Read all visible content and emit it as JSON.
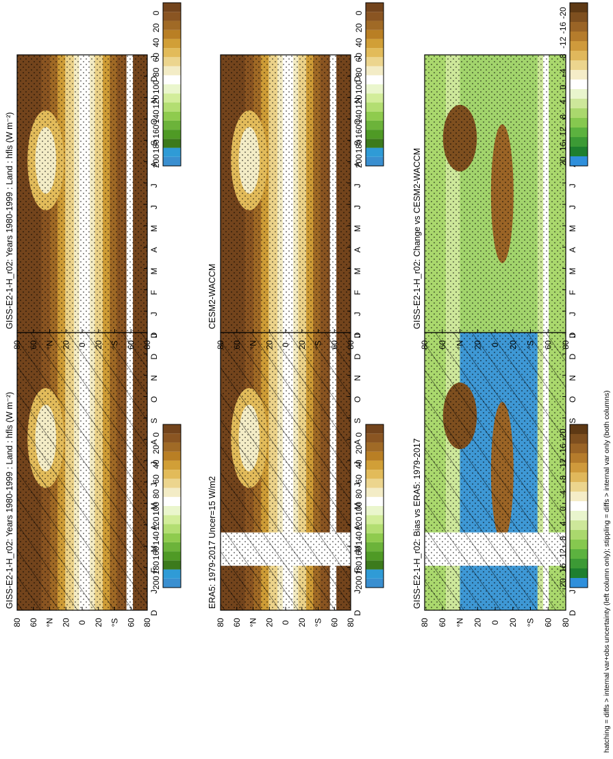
{
  "footnote": "hatching = diffs > internal var+obs uncertainty (left column only); stippling = diffs > internal var only (both columns)",
  "months": [
    "D",
    "J",
    "F",
    "M",
    "A",
    "M",
    "J",
    "J",
    "A",
    "S",
    "O",
    "N",
    "D",
    "J"
  ],
  "lat_ticks": [
    "80",
    "60",
    "°N",
    "20",
    "0",
    "20",
    "°S",
    "60",
    "80"
  ],
  "abs_colorbar_labels": [
    "200",
    "180",
    "160",
    "140",
    "120",
    "100",
    "80",
    "60",
    "40",
    "20",
    "0"
  ],
  "diff_colorbar_labels": [
    "20",
    "16",
    "12",
    "8",
    "4",
    "0",
    "-4",
    "-8",
    "-12",
    "-16",
    "-20"
  ],
  "abs_colors": [
    "#3a8fd0",
    "#2f9bd6",
    "#3c7a1c",
    "#4f9a25",
    "#6cb33a",
    "#8fcb4e",
    "#b3de72",
    "#d2ed9a",
    "#eaf6cd",
    "#ffffff",
    "#f3ecc6",
    "#ecd58e",
    "#e2bb5a",
    "#d19f37",
    "#b97f24",
    "#a06a26",
    "#8a5522",
    "#73441c"
  ],
  "diff_colors": [
    "#2f8fdb",
    "#1e7f2e",
    "#3c9a35",
    "#5cb23f",
    "#86c84f",
    "#aad86d",
    "#cde79a",
    "#e9f5cd",
    "#ffffff",
    "#f5edc8",
    "#ecd58e",
    "#e0b85c",
    "#cf9a3c",
    "#b57c2c",
    "#9a6426",
    "#7e4f1f",
    "#5e3914"
  ],
  "panels": [
    {
      "id": "p1",
      "title": "GISS-E2-1-H_r02: Years 1980-1999 : Land : hfls (W m⁻²)",
      "kind": "abs"
    },
    {
      "id": "p2",
      "title": "GISS-E2-1-H_r02: Years 1980-1999 : Land : hfls (W m⁻²)",
      "kind": "abs"
    },
    {
      "id": "p3",
      "title": "ERA5: 1979-2017 Uncer=15 W/m2",
      "kind": "abs"
    },
    {
      "id": "p4",
      "title": "CESM2-WACCM",
      "kind": "abs"
    },
    {
      "id": "p5",
      "title": "GISS-E2-1-H_r02: Bias vs ERA5: 1979-2017",
      "kind": "diff"
    },
    {
      "id": "p6",
      "title": "GISS-E2-1-H_r02: Change vs CESM2-WACCM",
      "kind": "diff"
    }
  ],
  "chart_data": [
    {
      "type": "heatmap",
      "title": "GISS-E2-1-H_r02: Years 1980-1999 : Land : hfls (W m⁻²)",
      "x": [
        "D",
        "J",
        "F",
        "M",
        "A",
        "M",
        "J",
        "J",
        "A",
        "S",
        "O",
        "N",
        "D",
        "J"
      ],
      "y": [
        "80",
        "60",
        "°N",
        "20",
        "0",
        "20",
        "°S",
        "60",
        "80"
      ],
      "colorbar": [
        200,
        180,
        160,
        140,
        120,
        100,
        80,
        60,
        40,
        20,
        0
      ]
    },
    {
      "type": "heatmap",
      "title": "GISS-E2-1-H_r02: Years 1980-1999 : Land : hfls (W m⁻²)",
      "x": [
        "D",
        "J",
        "F",
        "M",
        "A",
        "M",
        "J",
        "J",
        "A",
        "S",
        "O",
        "N",
        "D",
        "J"
      ],
      "y": [
        "80",
        "60",
        "°N",
        "20",
        "0",
        "20",
        "°S",
        "60",
        "80"
      ],
      "colorbar": [
        200,
        180,
        160,
        140,
        120,
        100,
        80,
        60,
        40,
        20,
        0
      ]
    },
    {
      "type": "heatmap",
      "title": "ERA5: 1979-2017 Uncer=15 W/m2",
      "x": [
        "D",
        "J",
        "F",
        "M",
        "A",
        "M",
        "J",
        "J",
        "A",
        "S",
        "O",
        "N",
        "D",
        "J"
      ],
      "y": [
        "80",
        "60",
        "°N",
        "20",
        "0",
        "20",
        "°S",
        "60",
        "80"
      ],
      "colorbar": [
        200,
        180,
        160,
        140,
        120,
        100,
        80,
        60,
        40,
        20,
        0
      ]
    },
    {
      "type": "heatmap",
      "title": "CESM2-WACCM",
      "x": [
        "D",
        "J",
        "F",
        "M",
        "A",
        "M",
        "J",
        "J",
        "A",
        "S",
        "O",
        "N",
        "D",
        "J"
      ],
      "y": [
        "80",
        "60",
        "°N",
        "20",
        "0",
        "20",
        "°S",
        "60",
        "80"
      ],
      "colorbar": [
        200,
        180,
        160,
        140,
        120,
        100,
        80,
        60,
        40,
        20,
        0
      ]
    },
    {
      "type": "heatmap",
      "title": "GISS-E2-1-H_r02: Bias vs ERA5: 1979-2017",
      "x": [
        "D",
        "J",
        "F",
        "M",
        "A",
        "M",
        "J",
        "J",
        "A",
        "S",
        "O",
        "N",
        "D",
        "J"
      ],
      "y": [
        "80",
        "60",
        "°N",
        "20",
        "0",
        "20",
        "°S",
        "60",
        "80"
      ],
      "colorbar": [
        20,
        16,
        12,
        8,
        4,
        0,
        -4,
        -8,
        -12,
        -16,
        -20
      ]
    },
    {
      "type": "heatmap",
      "title": "GISS-E2-1-H_r02: Change vs CESM2-WACCM",
      "x": [
        "D",
        "J",
        "F",
        "M",
        "A",
        "M",
        "J",
        "J",
        "A",
        "S",
        "O",
        "N",
        "D",
        "J"
      ],
      "y": [
        "80",
        "60",
        "°N",
        "20",
        "0",
        "20",
        "°S",
        "60",
        "80"
      ],
      "colorbar": [
        20,
        16,
        12,
        8,
        4,
        0,
        -4,
        -8,
        -12,
        -16,
        -20
      ]
    }
  ]
}
